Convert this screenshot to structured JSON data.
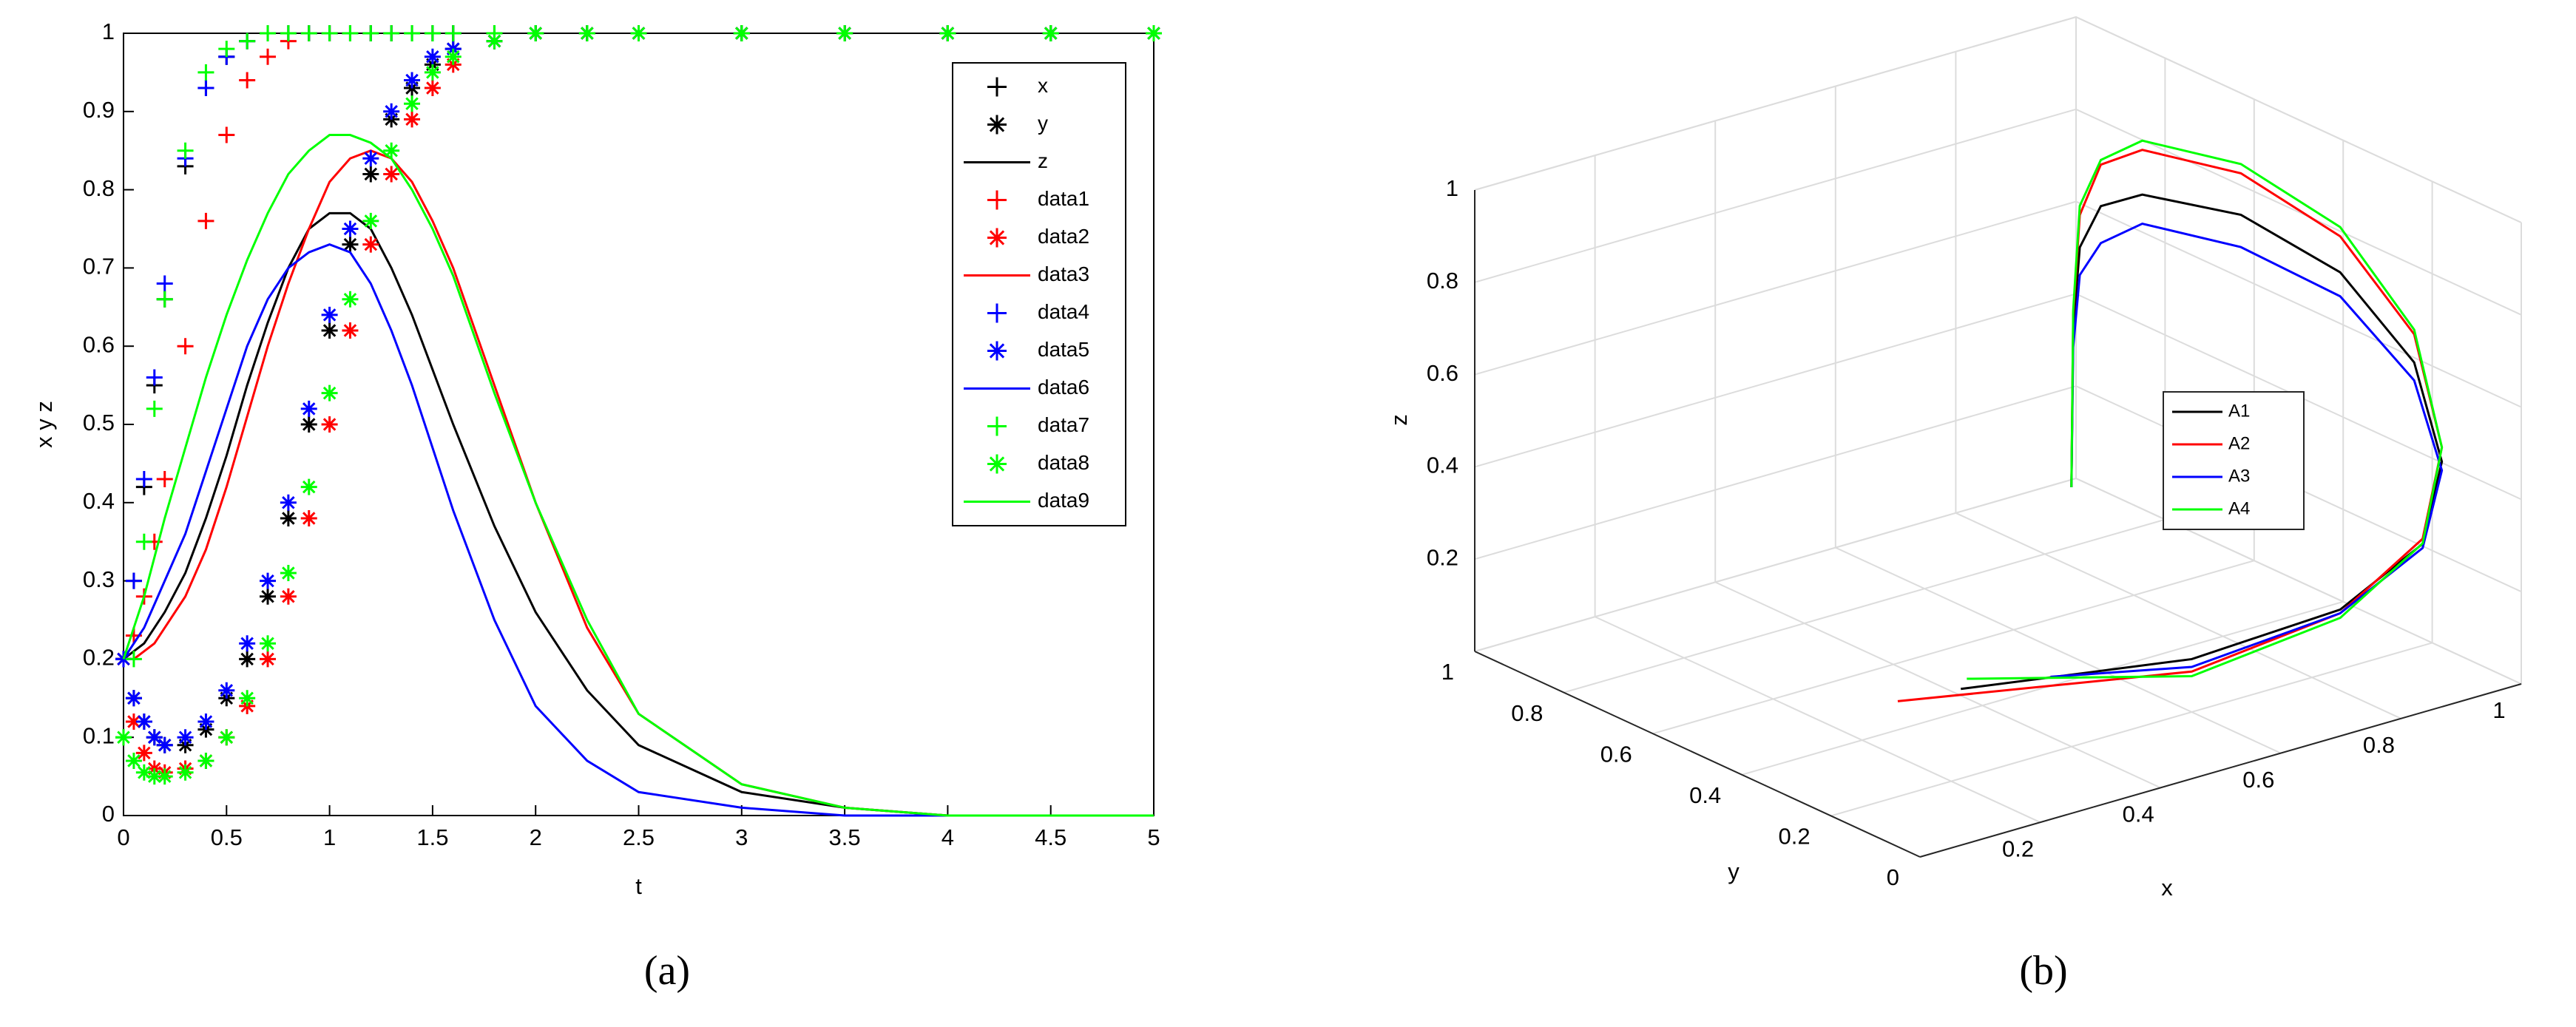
{
  "chart_data": [
    {
      "type": "line",
      "caption": "(a)",
      "xlabel": "t",
      "ylabel": "x y z",
      "xlim": [
        0,
        5
      ],
      "xticks": [
        0,
        0.5,
        1,
        1.5,
        2,
        2.5,
        3,
        3.5,
        4,
        4.5,
        5
      ],
      "ylim": [
        0,
        1
      ],
      "yticks": [
        0,
        0.1,
        0.2,
        0.3,
        0.4,
        0.5,
        0.6,
        0.7,
        0.8,
        0.9,
        1
      ],
      "legend": "upper-right",
      "x": [
        0,
        0.05,
        0.1,
        0.15,
        0.2,
        0.3,
        0.4,
        0.5,
        0.6,
        0.7,
        0.8,
        0.9,
        1.0,
        1.1,
        1.2,
        1.3,
        1.4,
        1.5,
        1.6,
        1.8,
        2.0,
        2.25,
        2.5,
        3,
        3.5,
        4,
        4.5,
        5
      ],
      "series": [
        {
          "name": "x",
          "color": "#000000",
          "marker": "+",
          "values": [
            0.2,
            0.3,
            0.42,
            0.55,
            0.66,
            0.83,
            0.93,
            0.97,
            0.99,
            1,
            1,
            1,
            1,
            1,
            1,
            1,
            1,
            1,
            1,
            1,
            1,
            1,
            1,
            1,
            1,
            1,
            1,
            1
          ]
        },
        {
          "name": "y",
          "color": "#000000",
          "marker": "*",
          "values": [
            0.2,
            0.15,
            0.12,
            0.1,
            0.09,
            0.09,
            0.11,
            0.15,
            0.2,
            0.28,
            0.38,
            0.5,
            0.62,
            0.73,
            0.82,
            0.89,
            0.93,
            0.96,
            0.98,
            0.99,
            1,
            1,
            1,
            1,
            1,
            1,
            1,
            1
          ]
        },
        {
          "name": "z",
          "color": "#000000",
          "values": [
            0.2,
            0.21,
            0.22,
            0.24,
            0.26,
            0.31,
            0.38,
            0.46,
            0.55,
            0.63,
            0.7,
            0.75,
            0.77,
            0.77,
            0.75,
            0.7,
            0.64,
            0.57,
            0.5,
            0.37,
            0.26,
            0.16,
            0.09,
            0.03,
            0.01,
            0,
            0,
            0
          ]
        },
        {
          "name": "data1",
          "color": "#ff0000",
          "marker": "+",
          "values": [
            0.2,
            0.23,
            0.28,
            0.35,
            0.43,
            0.6,
            0.76,
            0.87,
            0.94,
            0.97,
            0.99,
            1,
            1,
            1,
            1,
            1,
            1,
            1,
            1,
            1,
            1,
            1,
            1,
            1,
            1,
            1,
            1,
            1
          ]
        },
        {
          "name": "data2",
          "color": "#ff0000",
          "marker": "*",
          "values": [
            0.2,
            0.12,
            0.08,
            0.06,
            0.055,
            0.06,
            0.07,
            0.1,
            0.14,
            0.2,
            0.28,
            0.38,
            0.5,
            0.62,
            0.73,
            0.82,
            0.89,
            0.93,
            0.96,
            0.99,
            1,
            1,
            1,
            1,
            1,
            1,
            1,
            1
          ]
        },
        {
          "name": "data3",
          "color": "#ff0000",
          "values": [
            0.2,
            0.2,
            0.21,
            0.22,
            0.24,
            0.28,
            0.34,
            0.42,
            0.51,
            0.6,
            0.68,
            0.75,
            0.81,
            0.84,
            0.85,
            0.84,
            0.81,
            0.76,
            0.7,
            0.55,
            0.4,
            0.24,
            0.13,
            0.04,
            0.01,
            0,
            0,
            0
          ]
        },
        {
          "name": "data4",
          "color": "#0000ff",
          "marker": "+",
          "values": [
            0.2,
            0.3,
            0.43,
            0.56,
            0.68,
            0.84,
            0.93,
            0.97,
            0.99,
            1,
            1,
            1,
            1,
            1,
            1,
            1,
            1,
            1,
            1,
            1,
            1,
            1,
            1,
            1,
            1,
            1,
            1,
            1
          ]
        },
        {
          "name": "data5",
          "color": "#0000ff",
          "marker": "*",
          "values": [
            0.2,
            0.15,
            0.12,
            0.1,
            0.09,
            0.1,
            0.12,
            0.16,
            0.22,
            0.3,
            0.4,
            0.52,
            0.64,
            0.75,
            0.84,
            0.9,
            0.94,
            0.97,
            0.98,
            0.99,
            1,
            1,
            1,
            1,
            1,
            1,
            1,
            1
          ]
        },
        {
          "name": "data6",
          "color": "#0000ff",
          "values": [
            0.2,
            0.22,
            0.24,
            0.27,
            0.3,
            0.36,
            0.44,
            0.52,
            0.6,
            0.66,
            0.7,
            0.72,
            0.73,
            0.72,
            0.68,
            0.62,
            0.55,
            0.47,
            0.39,
            0.25,
            0.14,
            0.07,
            0.03,
            0.01,
            0,
            0,
            0,
            0
          ]
        },
        {
          "name": "data7",
          "color": "#00ff00",
          "marker": "+",
          "values": [
            0.1,
            0.2,
            0.35,
            0.52,
            0.66,
            0.85,
            0.95,
            0.98,
            0.99,
            1,
            1,
            1,
            1,
            1,
            1,
            1,
            1,
            1,
            1,
            1,
            1,
            1,
            1,
            1,
            1,
            1,
            1,
            1
          ]
        },
        {
          "name": "data8",
          "color": "#00ff00",
          "marker": "*",
          "values": [
            0.1,
            0.07,
            0.055,
            0.05,
            0.05,
            0.055,
            0.07,
            0.1,
            0.15,
            0.22,
            0.31,
            0.42,
            0.54,
            0.66,
            0.76,
            0.85,
            0.91,
            0.95,
            0.97,
            0.99,
            1,
            1,
            1,
            1,
            1,
            1,
            1,
            1
          ]
        },
        {
          "name": "data9",
          "color": "#00ff00",
          "values": [
            0.2,
            0.24,
            0.28,
            0.33,
            0.38,
            0.47,
            0.56,
            0.64,
            0.71,
            0.77,
            0.82,
            0.85,
            0.87,
            0.87,
            0.86,
            0.84,
            0.8,
            0.75,
            0.69,
            0.54,
            0.4,
            0.25,
            0.13,
            0.04,
            0.01,
            0,
            0,
            0
          ]
        }
      ]
    },
    {
      "type": "line3d",
      "caption": "(b)",
      "xlabel": "x",
      "ylabel": "y",
      "zlabel": "z",
      "xlim": [
        0,
        1
      ],
      "xticks": [
        0.2,
        0.4,
        0.6,
        0.8,
        1
      ],
      "ylim": [
        0,
        1
      ],
      "yticks": [
        0,
        0.2,
        0.4,
        0.6,
        0.8,
        1
      ],
      "zlim": [
        0,
        1
      ],
      "zticks": [
        0.2,
        0.4,
        0.6,
        0.8,
        1
      ],
      "grid": true,
      "legend": "center",
      "series": [
        {
          "name": "A1",
          "color": "#000000",
          "x": [
            0.474,
            0.551,
            0.636,
            0.708,
            0.814,
            0.904,
            0.958,
            0.97,
            0.942,
            0.873,
            0.736,
            0.526,
            0.216
          ],
          "y": [
            0.3,
            0.4,
            0.5,
            0.55,
            0.6,
            0.5,
            0.35,
            0.2,
            0.1,
            0.05,
            0.05,
            0.1,
            0.2
          ],
          "z": [
            0.49,
            0.758,
            0.86,
            0.9,
            0.863,
            0.83,
            0.752,
            0.619,
            0.459,
            0.329,
            0.238,
            0.187,
            0.194
          ]
        },
        {
          "name": "A2",
          "color": "#ff0000",
          "x": [
            0.474,
            0.551,
            0.636,
            0.708,
            0.814,
            0.904,
            0.958,
            0.97,
            0.942,
            0.873,
            0.736,
            0.526,
            0.2
          ],
          "y": [
            0.3,
            0.4,
            0.5,
            0.55,
            0.6,
            0.5,
            0.35,
            0.2,
            0.1,
            0.05,
            0.05,
            0.1,
            0.32
          ],
          "z": [
            0.49,
            0.79,
            0.93,
            0.99,
            0.96,
            0.92,
            0.83,
            0.68,
            0.49,
            0.34,
            0.23,
            0.16,
            0.12
          ]
        },
        {
          "name": "A3",
          "color": "#0000ff",
          "x": [
            0.474,
            0.551,
            0.636,
            0.708,
            0.814,
            0.904,
            0.958,
            0.97,
            0.942,
            0.873,
            0.736,
            0.526,
            0.38
          ],
          "y": [
            0.3,
            0.4,
            0.5,
            0.55,
            0.6,
            0.5,
            0.35,
            0.2,
            0.1,
            0.05,
            0.05,
            0.1,
            0.22
          ],
          "z": [
            0.49,
            0.72,
            0.8,
            0.82,
            0.8,
            0.76,
            0.7,
            0.58,
            0.44,
            0.32,
            0.23,
            0.17,
            0.15
          ]
        },
        {
          "name": "A4",
          "color": "#00ff00",
          "x": [
            0.474,
            0.551,
            0.636,
            0.708,
            0.814,
            0.904,
            0.958,
            0.97,
            0.942,
            0.873,
            0.736,
            0.526,
            0.3
          ],
          "y": [
            0.3,
            0.4,
            0.5,
            0.55,
            0.6,
            0.5,
            0.35,
            0.2,
            0.1,
            0.05,
            0.05,
            0.1,
            0.3
          ],
          "z": [
            0.49,
            0.8,
            0.95,
            1.0,
            0.98,
            0.94,
            0.85,
            0.69,
            0.49,
            0.33,
            0.22,
            0.15,
            0.14
          ]
        }
      ]
    }
  ]
}
